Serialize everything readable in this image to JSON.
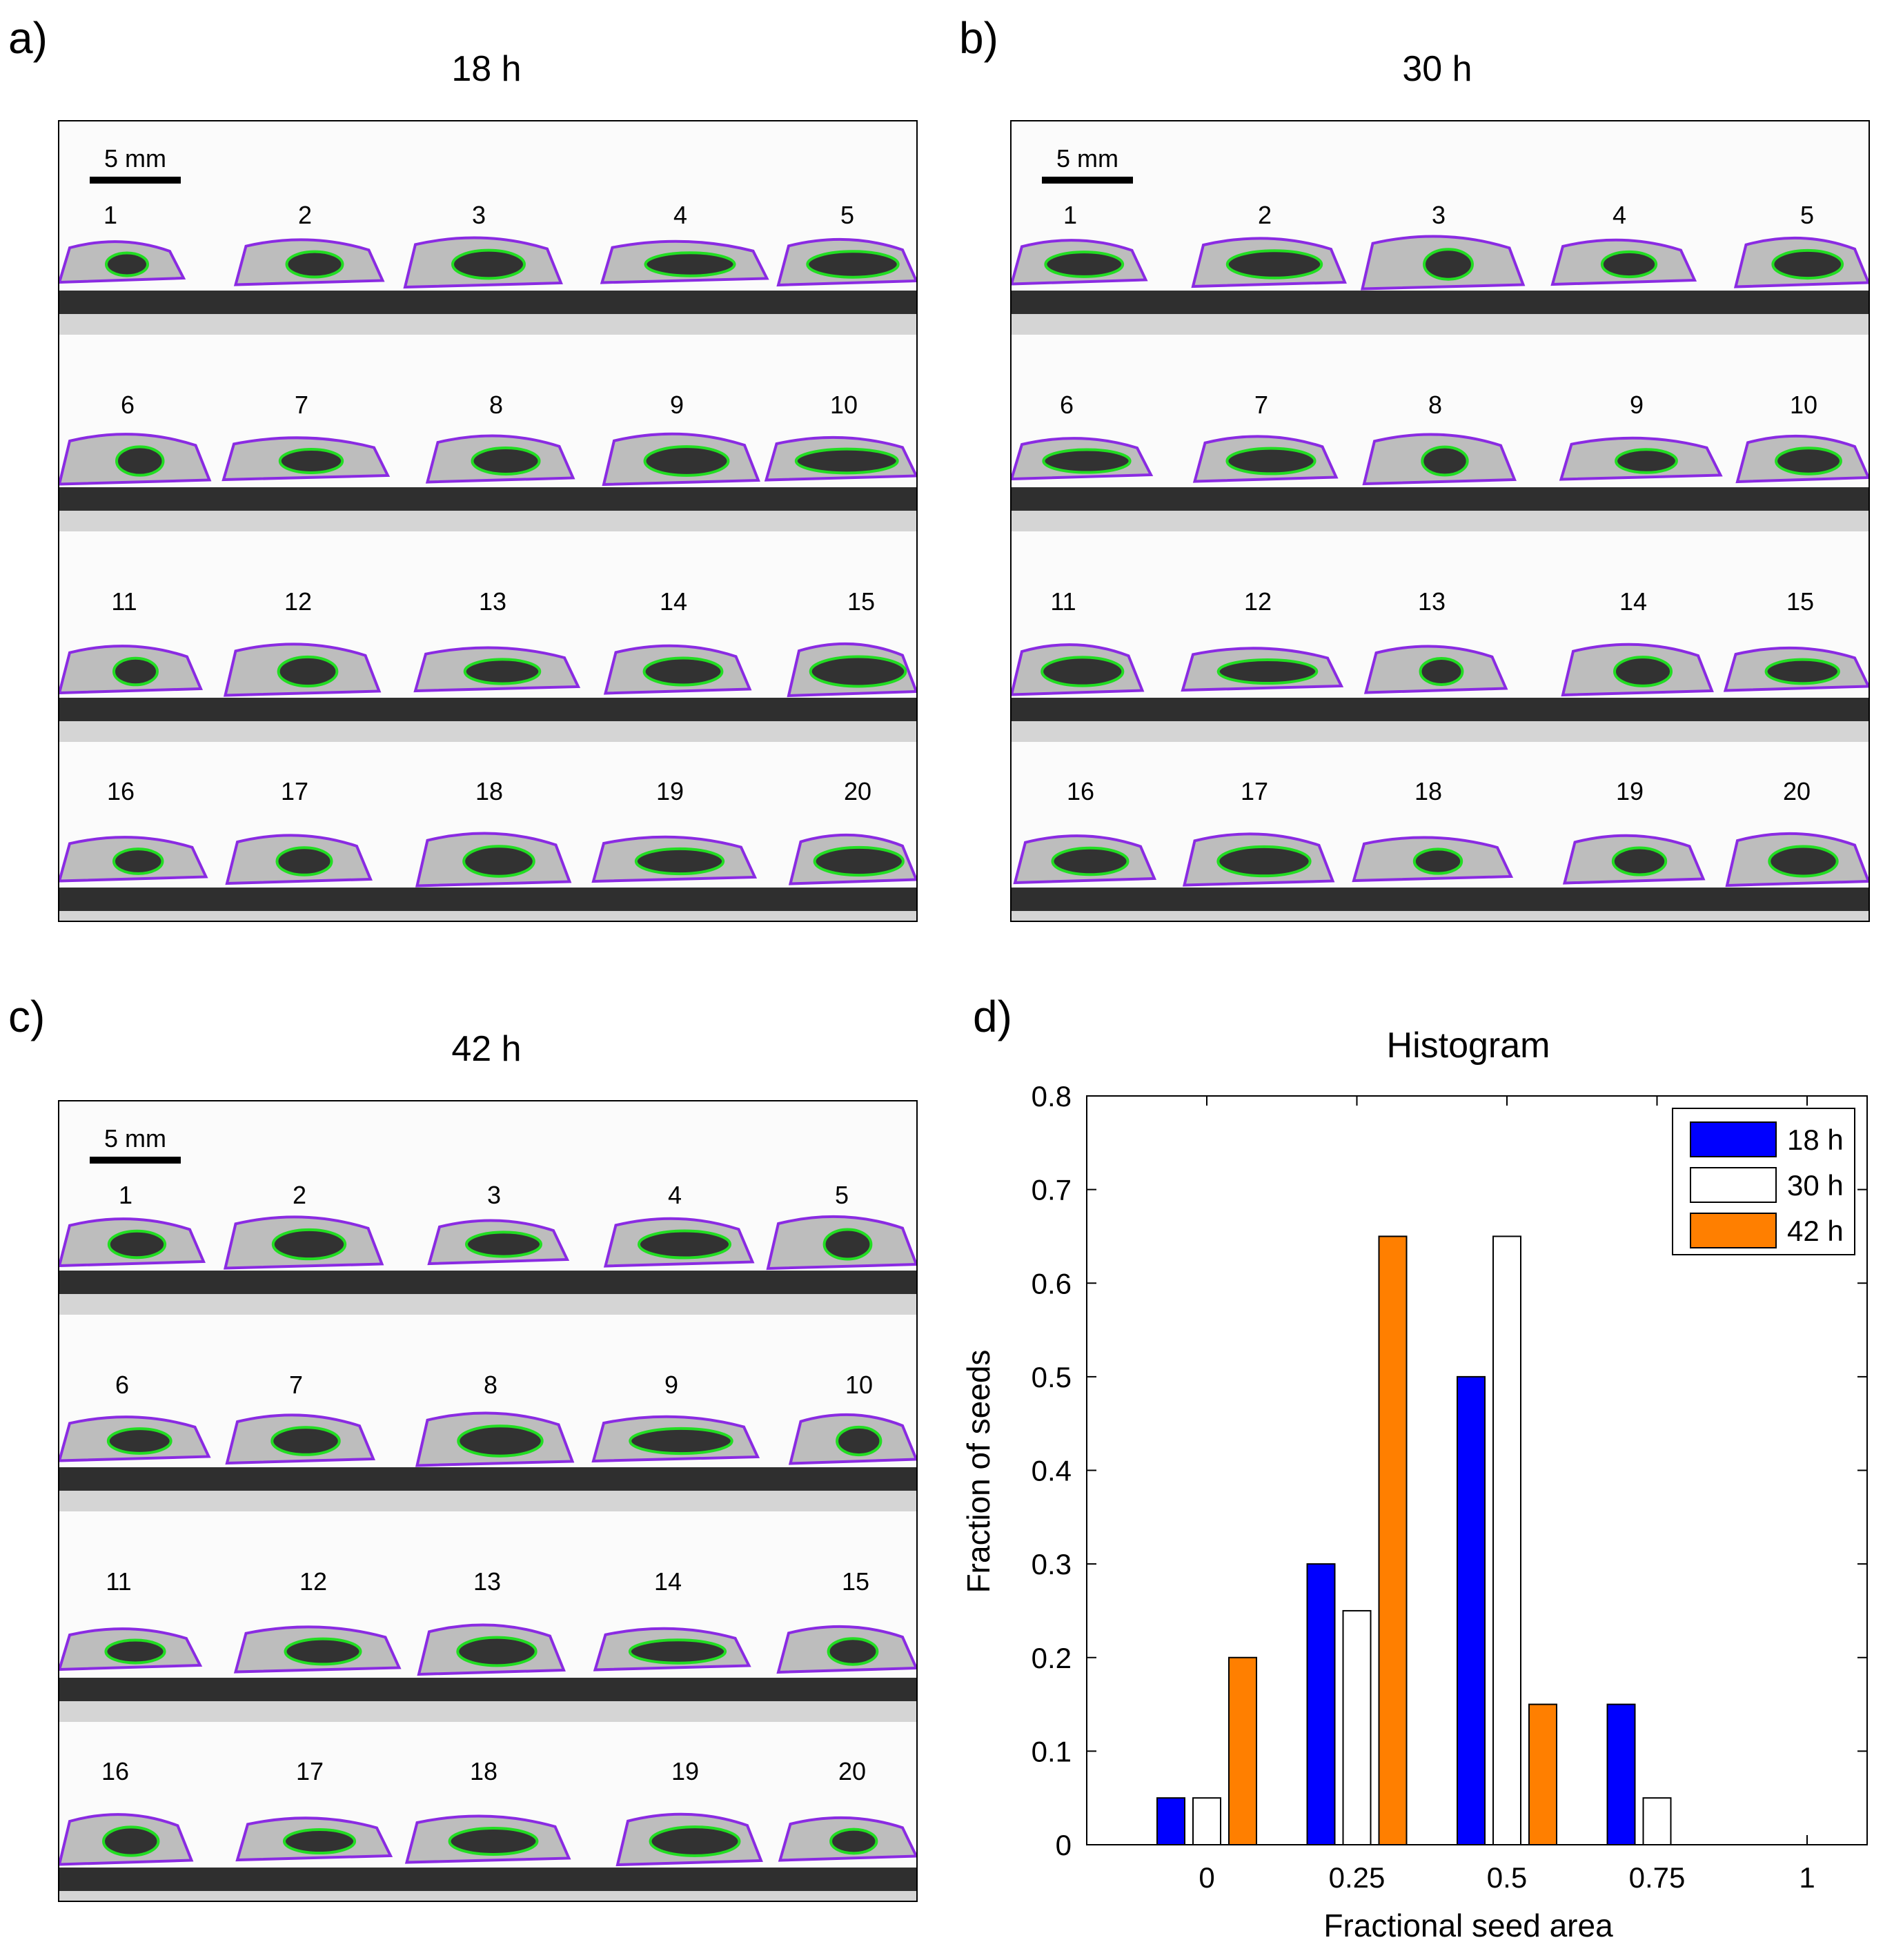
{
  "panels": [
    {
      "letter": "a)",
      "title": "18 h",
      "scale_label": "5 mm"
    },
    {
      "letter": "b)",
      "title": "30 h",
      "scale_label": "5 mm"
    },
    {
      "letter": "c)",
      "title": "42 h",
      "scale_label": "5 mm"
    }
  ],
  "seed_numbers": [
    "1",
    "2",
    "3",
    "4",
    "5",
    "6",
    "7",
    "8",
    "9",
    "10",
    "11",
    "12",
    "13",
    "14",
    "15",
    "16",
    "17",
    "18",
    "19",
    "20"
  ],
  "colors": {
    "outline": "#8a2be2",
    "seed_contour": "#22dd22",
    "bar_18h": "#0000ff",
    "bar_30h": "#ffffff",
    "bar_42h": "#ff7f00"
  },
  "histogram_panel_letter": "d)",
  "chart_data": {
    "type": "bar",
    "title": "Histogram",
    "xlabel": "Fractional seed area",
    "ylabel": "Fraction of seeds",
    "categories": [
      "0",
      "0.25",
      "0.5",
      "0.75",
      "1"
    ],
    "x": [
      0,
      0.25,
      0.5,
      0.75,
      1
    ],
    "xlim": [
      -0.2,
      1.1
    ],
    "ylim": [
      0,
      0.8
    ],
    "yticks": [
      "0",
      "0.1",
      "0.2",
      "0.3",
      "0.4",
      "0.5",
      "0.6",
      "0.7",
      "0.8"
    ],
    "legend_position": "top-right",
    "series": [
      {
        "name": "18 h",
        "color": "#0000ff",
        "values": [
          0.05,
          0.3,
          0.5,
          0.15,
          0
        ]
      },
      {
        "name": "30 h",
        "color": "#ffffff",
        "values": [
          0.05,
          0.25,
          0.65,
          0.05,
          0
        ]
      },
      {
        "name": "42 h",
        "color": "#ff7f00",
        "values": [
          0.2,
          0.65,
          0.15,
          0,
          0
        ]
      }
    ]
  }
}
